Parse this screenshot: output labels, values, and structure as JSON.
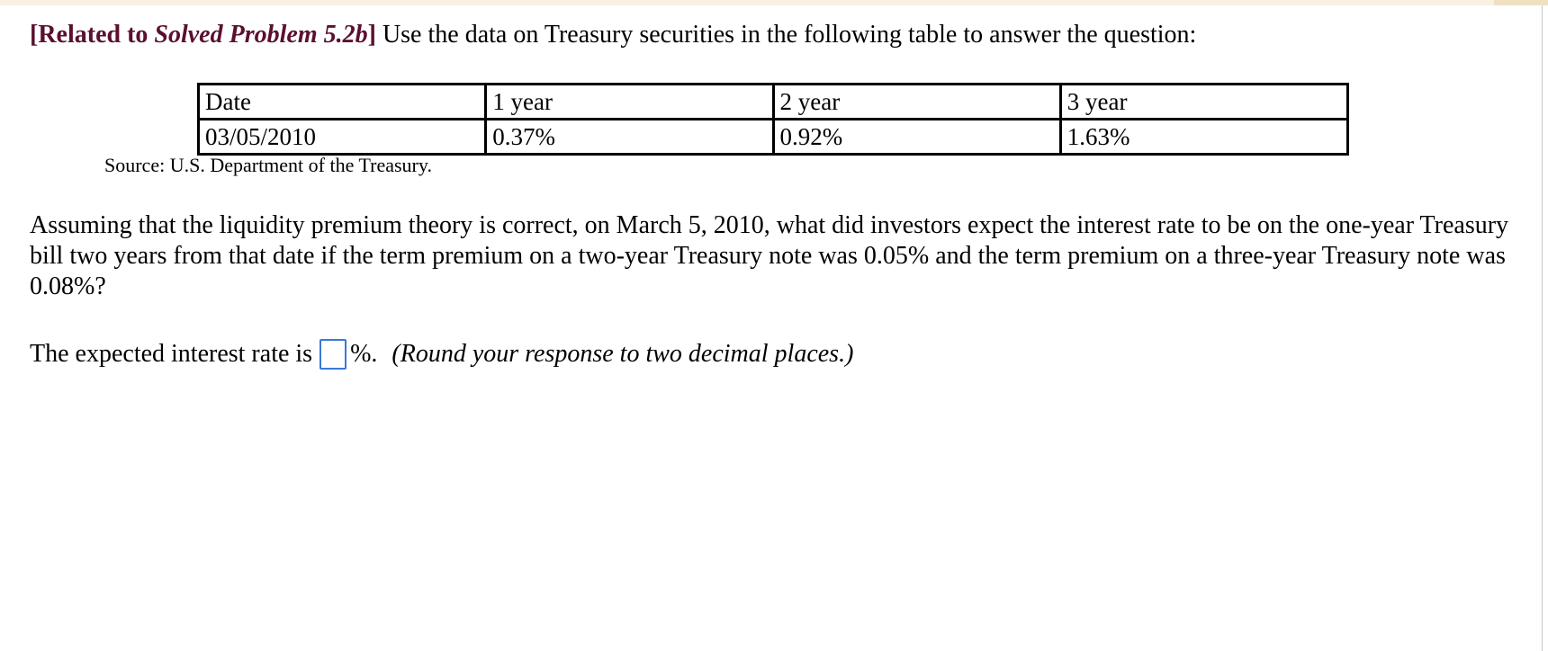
{
  "heading": {
    "bracket_open": "[",
    "related_prefix": "Related to ",
    "related_problem": "Solved Problem 5.2b",
    "bracket_close": "]",
    "text": " Use the data on Treasury securities in the following table to answer the question:"
  },
  "table": {
    "headers": [
      "Date",
      "1 year",
      "2 year",
      "3 year"
    ],
    "rows": [
      [
        "03/05/2010",
        "0.37%",
        "0.92%",
        "1.63%"
      ]
    ]
  },
  "source": "Source: U.S. Department of the Treasury.",
  "question": "Assuming that the liquidity premium theory is correct, on March 5, 2010, what did investors expect the interest rate to be on  the one-year Treasury bill two years from that date if the term premium on a two-year Treasury note was 0.05% and the term premium on a three-year Treasury note was 0.08%?",
  "answer": {
    "prefix": "The expected interest rate is",
    "value": "",
    "suffix": "%.",
    "instruction": "(Round your response to two decimal places.)"
  },
  "colors": {
    "related_heading": "#5a1030",
    "answer_box_border": "#3a78d6",
    "top_strip": "#f8f1e4"
  }
}
